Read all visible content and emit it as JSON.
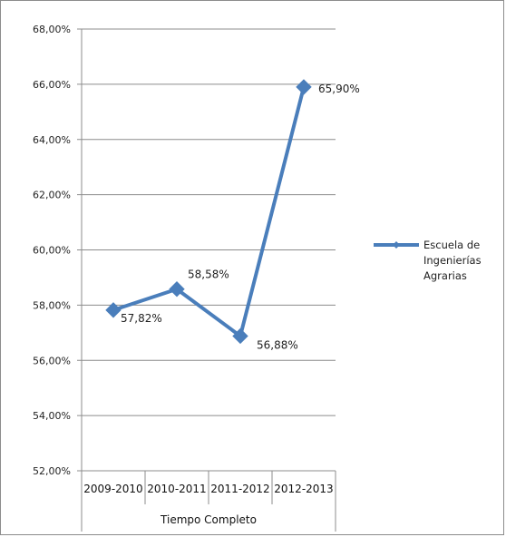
{
  "chart_data": {
    "type": "line",
    "title": "",
    "xlabel": "",
    "ylabel": "",
    "group_label": "Tiempo Completo",
    "categories": [
      "2009-2010",
      "2010-2011",
      "2011-2012",
      "2012-2013"
    ],
    "series": [
      {
        "name": "Escuela de Ingenierías Agrarias",
        "name_lines": [
          "Escuela de",
          "Ingenierías",
          "Agrarias"
        ],
        "values": [
          57.82,
          58.58,
          56.88,
          65.9
        ],
        "data_labels": [
          "57,82%",
          "58,58%",
          "56,88%",
          "65,90%"
        ],
        "color": "#4a7ebb"
      }
    ],
    "ylim": [
      52,
      68
    ],
    "yticks": [
      52,
      54,
      56,
      58,
      60,
      62,
      64,
      66,
      68
    ],
    "ytick_labels": [
      "52,00%",
      "54,00%",
      "56,00%",
      "58,00%",
      "60,00%",
      "62,00%",
      "64,00%",
      "66,00%",
      "68,00%"
    ],
    "grid": true,
    "legend_position": "right",
    "marker": "diamond"
  }
}
